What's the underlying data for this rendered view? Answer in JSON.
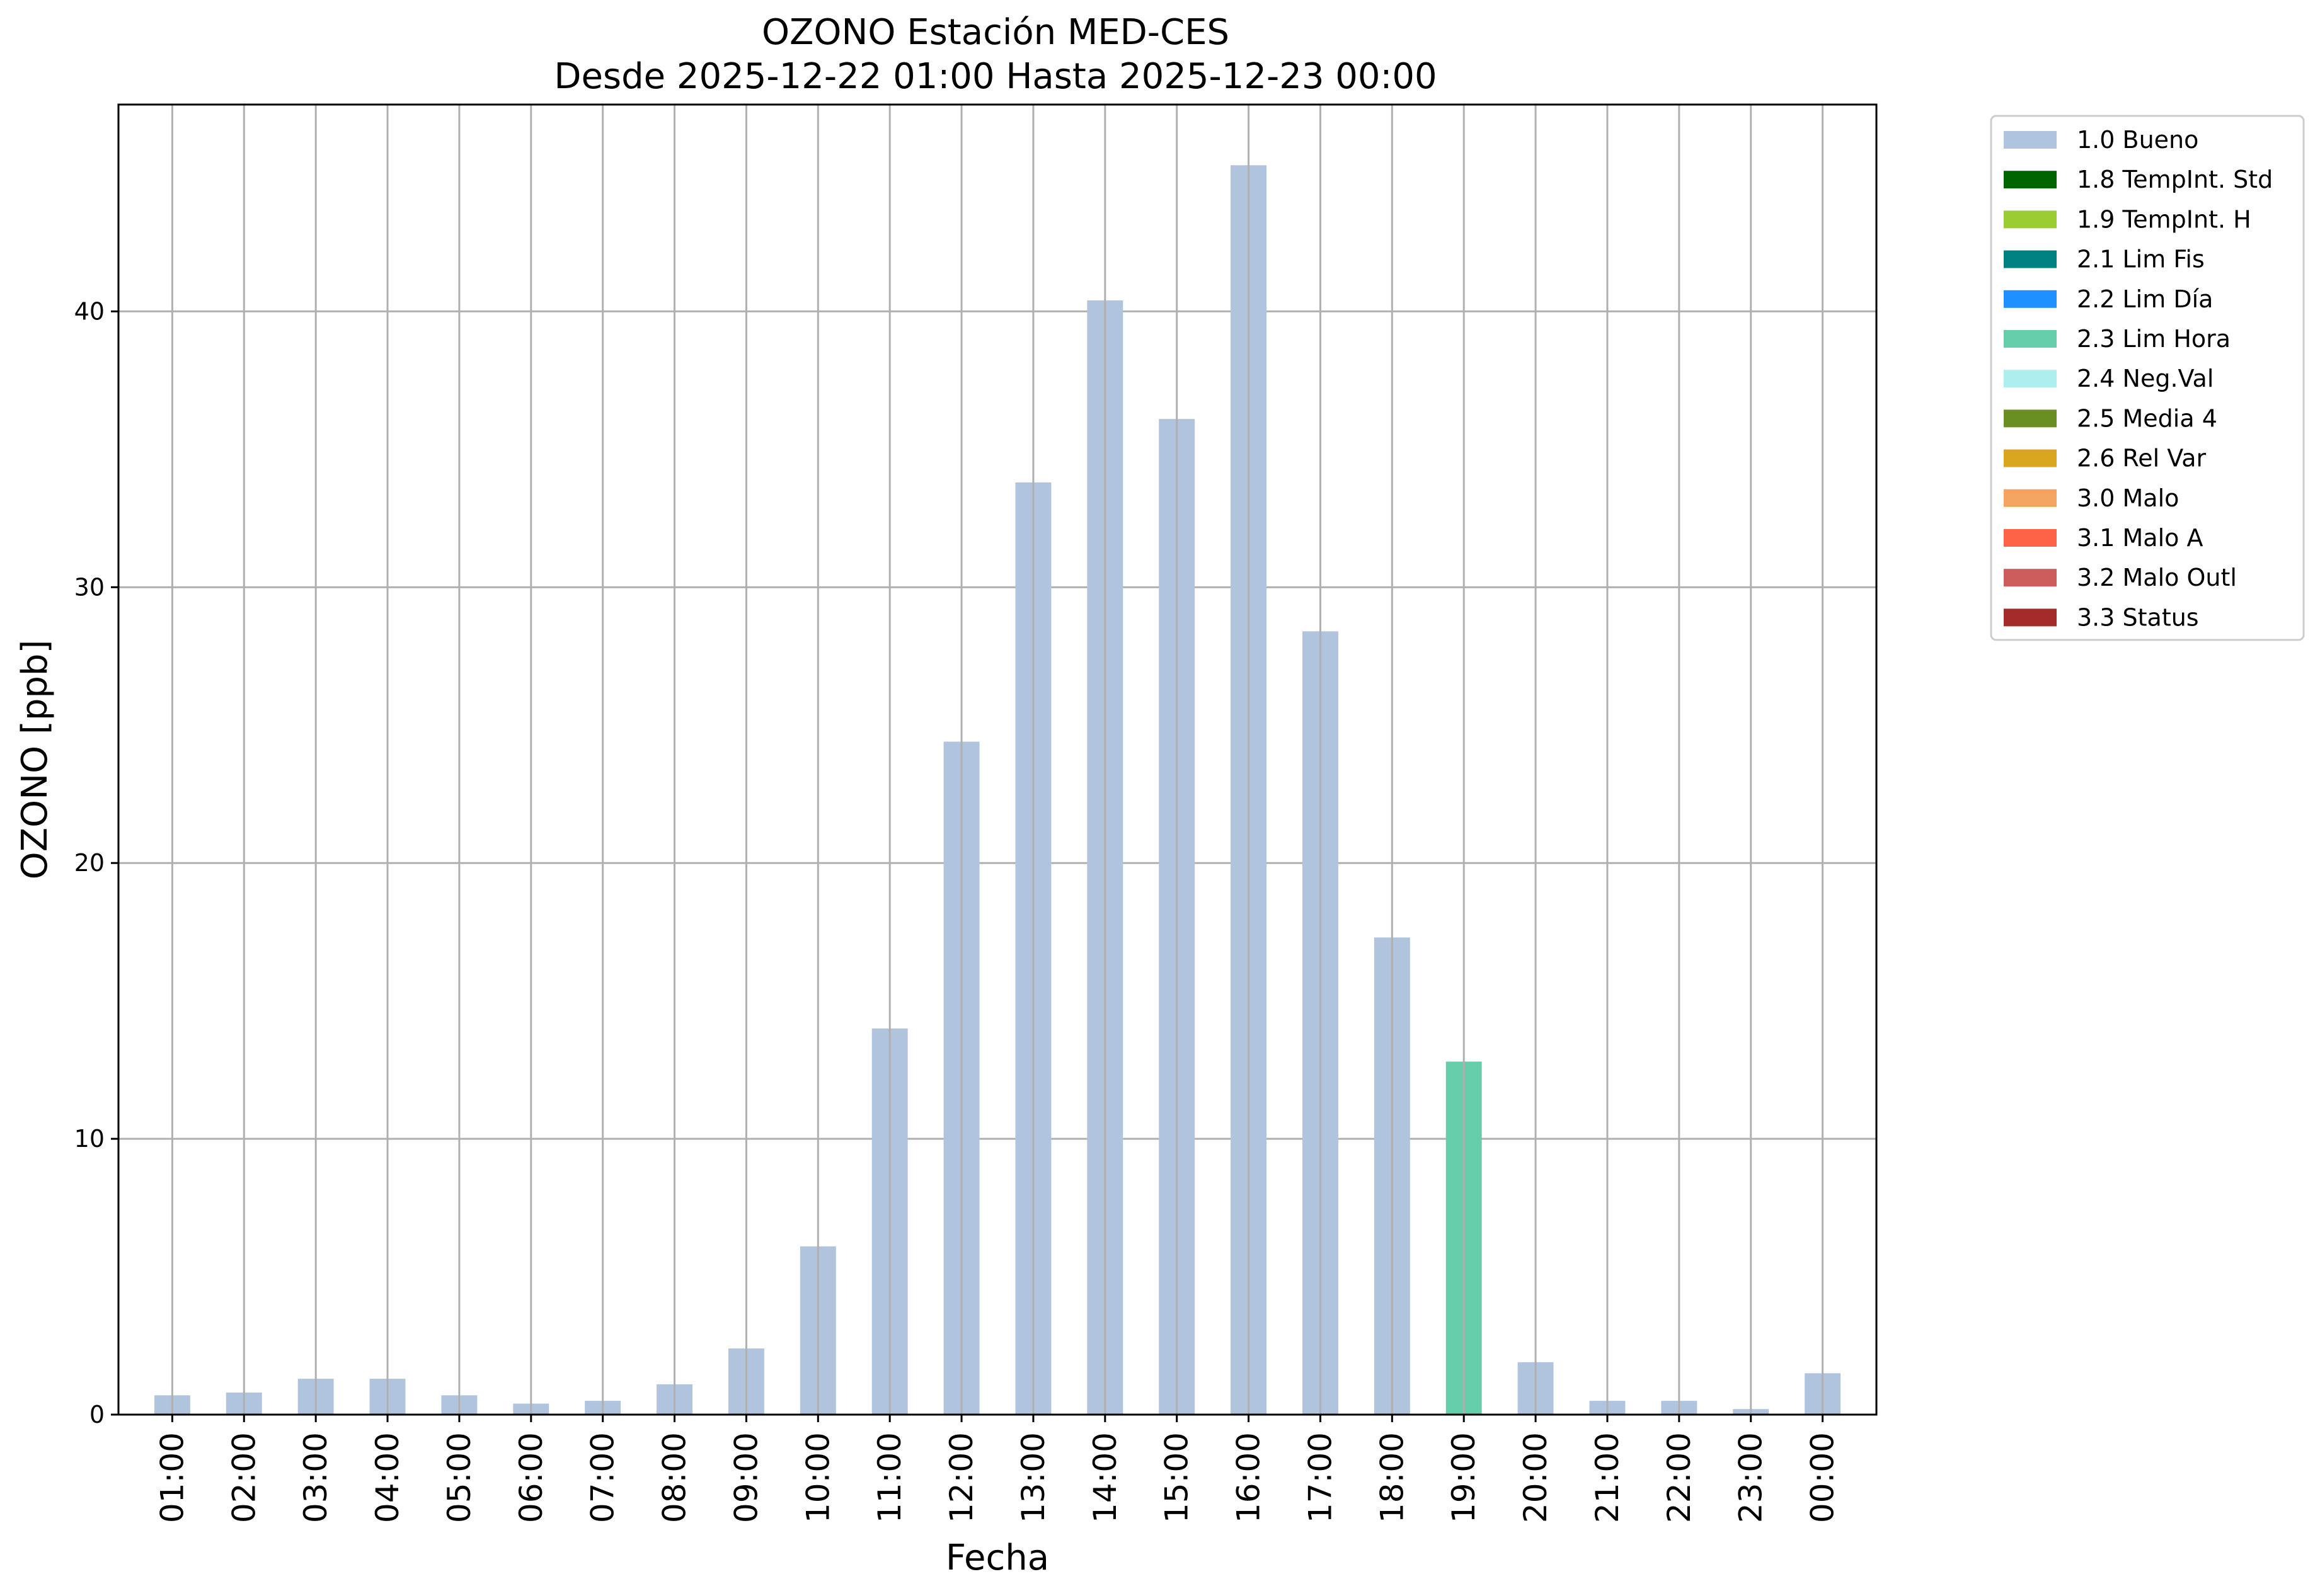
{
  "chart_data": {
    "type": "bar",
    "title": "OZONO Estación MED-CES",
    "subtitle": "Desde 2025-12-22 01:00 Hasta 2025-12-23 00:00",
    "xlabel": "Fecha",
    "ylabel": "OZONO [ppb]",
    "ylim": [
      0,
      47.5
    ],
    "yticks": [
      0,
      10,
      20,
      30,
      40
    ],
    "grid": true,
    "legend_position": "outside right, top",
    "categories": [
      "01:00",
      "02:00",
      "03:00",
      "04:00",
      "05:00",
      "06:00",
      "07:00",
      "08:00",
      "09:00",
      "10:00",
      "11:00",
      "12:00",
      "13:00",
      "14:00",
      "15:00",
      "16:00",
      "17:00",
      "18:00",
      "19:00",
      "20:00",
      "21:00",
      "22:00",
      "23:00",
      "00:00"
    ],
    "values": [
      0.7,
      0.8,
      1.3,
      1.3,
      0.7,
      0.4,
      0.5,
      1.1,
      2.4,
      6.1,
      14.0,
      24.4,
      33.8,
      40.4,
      36.1,
      45.3,
      28.4,
      17.3,
      12.8,
      1.9,
      0.5,
      0.5,
      0.2,
      1.5
    ],
    "flags": [
      "1.0 Bueno",
      "1.0 Bueno",
      "1.0 Bueno",
      "1.0 Bueno",
      "1.0 Bueno",
      "1.0 Bueno",
      "1.0 Bueno",
      "1.0 Bueno",
      "1.0 Bueno",
      "1.0 Bueno",
      "1.0 Bueno",
      "1.0 Bueno",
      "1.0 Bueno",
      "1.0 Bueno",
      "1.0 Bueno",
      "1.0 Bueno",
      "1.0 Bueno",
      "1.0 Bueno",
      "2.3 Lim Hora",
      "1.0 Bueno",
      "1.0 Bueno",
      "1.0 Bueno",
      "1.0 Bueno",
      "1.0 Bueno"
    ],
    "legend": [
      {
        "label": "1.0 Bueno",
        "color": "#b0c4de"
      },
      {
        "label": "1.8 TempInt. Std",
        "color": "#006400"
      },
      {
        "label": "1.9 TempInt. H",
        "color": "#9acd32"
      },
      {
        "label": "2.1 Lim Fis",
        "color": "#008080"
      },
      {
        "label": "2.2 Lim Día",
        "color": "#1e90ff"
      },
      {
        "label": "2.3 Lim Hora",
        "color": "#66cdaa"
      },
      {
        "label": "2.4 Neg.Val",
        "color": "#afeeee"
      },
      {
        "label": "2.5 Media 4",
        "color": "#6b8e23"
      },
      {
        "label": "2.6 Rel Var",
        "color": "#daa520"
      },
      {
        "label": "3.0 Malo",
        "color": "#f4a460"
      },
      {
        "label": "3.1 Malo A",
        "color": "#ff6347"
      },
      {
        "label": "3.2 Malo Outl",
        "color": "#cd5c5c"
      },
      {
        "label": "3.3 Status",
        "color": "#a52a2a"
      }
    ]
  }
}
